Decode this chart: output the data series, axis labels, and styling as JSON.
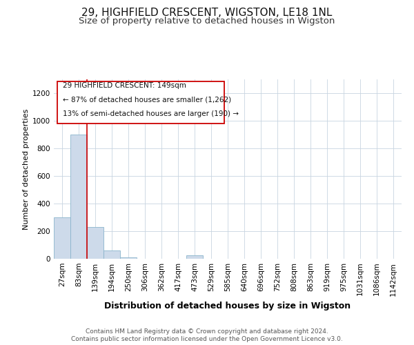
{
  "title1": "29, HIGHFIELD CRESCENT, WIGSTON, LE18 1NL",
  "title2": "Size of property relative to detached houses in Wigston",
  "xlabel": "Distribution of detached houses by size in Wigston",
  "ylabel": "Number of detached properties",
  "footer1": "Contains HM Land Registry data © Crown copyright and database right 2024.",
  "footer2": "Contains public sector information licensed under the Open Government Licence v3.0.",
  "annotation_line1": "29 HIGHFIELD CRESCENT: 149sqm",
  "annotation_line2": "← 87% of detached houses are smaller (1,262)",
  "annotation_line3": "13% of semi-detached houses are larger (190) →",
  "bins": [
    "27sqm",
    "83sqm",
    "139sqm",
    "194sqm",
    "250sqm",
    "306sqm",
    "362sqm",
    "417sqm",
    "473sqm",
    "529sqm",
    "585sqm",
    "640sqm",
    "696sqm",
    "752sqm",
    "808sqm",
    "863sqm",
    "919sqm",
    "975sqm",
    "1031sqm",
    "1086sqm",
    "1142sqm"
  ],
  "bar_values": [
    300,
    900,
    230,
    60,
    10,
    0,
    0,
    0,
    25,
    0,
    0,
    0,
    0,
    0,
    0,
    0,
    0,
    0,
    0,
    0,
    0
  ],
  "bar_color": "#cddaea",
  "bar_edge_color": "#8ab4cc",
  "property_line_x": 1.5,
  "property_line_color": "#cc0000",
  "ylim": [
    0,
    1300
  ],
  "yticks": [
    0,
    200,
    400,
    600,
    800,
    1000,
    1200
  ],
  "background_color": "#ffffff",
  "plot_background_color": "#ffffff",
  "title1_fontsize": 11,
  "title2_fontsize": 9.5,
  "xlabel_fontsize": 9,
  "ylabel_fontsize": 8,
  "tick_fontsize": 7.5,
  "annotation_fontsize": 7.5,
  "footer_fontsize": 6.5
}
